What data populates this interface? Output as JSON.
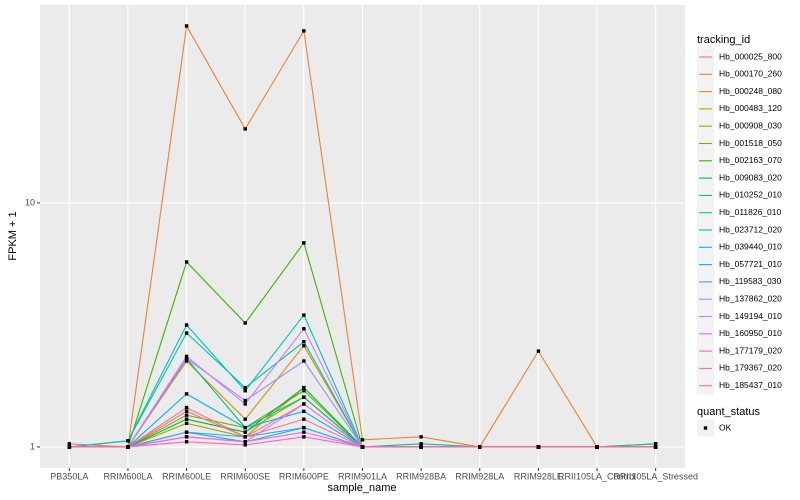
{
  "chart_data": {
    "type": "line",
    "x_label": "sample_name",
    "y_label": "FPKM + 1",
    "categories": [
      "PB350LA",
      "RRIM600LA",
      "RRIM600LE",
      "RRIM600SE",
      "RRIM600PE",
      "RRIM901LA",
      "RRIM928BA",
      "RRIM928LA",
      "RRIM928LE",
      "RRII105LA_Control",
      "RRII105LA_Stressed"
    ],
    "log_scale": "y",
    "ylim": [
      0.82,
      64.7
    ],
    "yticks": [
      1,
      10
    ],
    "grid": true,
    "legend_title": "tracking_id",
    "legend_position": "right",
    "shape_legend_title": "quant_status",
    "shape_legend_labels": [
      "OK"
    ],
    "point_color": "#000000",
    "series": [
      {
        "name": "Hb_000025_800",
        "color": "#F8766D",
        "values": [
          1.03,
          1.0,
          1.45,
          1.1,
          1.5,
          1.0,
          1.0,
          1.0,
          1.0,
          1.0,
          1.0
        ]
      },
      {
        "name": "Hb_000170_260",
        "color": "#EA8331",
        "values": [
          1.0,
          1.0,
          53.1,
          20.1,
          50.7,
          1.07,
          1.1,
          1.0,
          2.47,
          1.0,
          1.0
        ]
      },
      {
        "name": "Hb_000248_080",
        "color": "#D89000",
        "values": [
          1.0,
          1.0,
          2.25,
          1.3,
          2.6,
          1.0,
          1.0,
          1.0,
          1.0,
          1.0,
          1.0
        ]
      },
      {
        "name": "Hb_000483_120",
        "color": "#C09B00",
        "values": [
          1.0,
          1.0,
          1.3,
          1.15,
          1.6,
          1.0,
          1.0,
          1.0,
          1.0,
          1.0,
          1.0
        ]
      },
      {
        "name": "Hb_000908_030",
        "color": "#A3A500",
        "values": [
          1.0,
          1.0,
          1.25,
          1.1,
          1.75,
          1.0,
          1.0,
          1.0,
          1.0,
          1.0,
          1.0
        ]
      },
      {
        "name": "Hb_001518_050",
        "color": "#7CAE00",
        "values": [
          1.0,
          1.0,
          1.35,
          1.2,
          1.7,
          1.0,
          1.0,
          1.0,
          1.0,
          1.0,
          1.0
        ]
      },
      {
        "name": "Hb_002163_070",
        "color": "#39B600",
        "values": [
          1.0,
          1.0,
          5.73,
          3.22,
          6.86,
          1.0,
          1.0,
          1.0,
          1.0,
          1.0,
          1.03
        ]
      },
      {
        "name": "Hb_009083_020",
        "color": "#00BB4E",
        "values": [
          1.0,
          1.0,
          1.3,
          1.15,
          1.75,
          1.0,
          1.0,
          1.0,
          1.0,
          1.0,
          1.0
        ]
      },
      {
        "name": "Hb_010252_010",
        "color": "#00BF7D",
        "values": [
          1.0,
          1.0,
          2.3,
          1.2,
          1.6,
          1.0,
          1.0,
          1.0,
          1.0,
          1.0,
          1.0
        ]
      },
      {
        "name": "Hb_011826_010",
        "color": "#00C1A3",
        "values": [
          1.0,
          1.06,
          2.93,
          1.75,
          2.7,
          1.0,
          1.03,
          1.0,
          1.0,
          1.0,
          1.03
        ]
      },
      {
        "name": "Hb_023712_020",
        "color": "#00BFC4",
        "values": [
          1.0,
          1.06,
          3.16,
          1.7,
          3.47,
          1.0,
          1.0,
          1.0,
          1.0,
          1.0,
          1.0
        ]
      },
      {
        "name": "Hb_039440_010",
        "color": "#00BAE0",
        "values": [
          1.0,
          1.0,
          1.15,
          1.05,
          1.2,
          1.0,
          1.0,
          1.0,
          1.0,
          1.0,
          1.0
        ]
      },
      {
        "name": "Hb_057721_010",
        "color": "#00B0F6",
        "values": [
          1.0,
          1.0,
          1.65,
          1.2,
          1.4,
          1.0,
          1.0,
          1.0,
          1.0,
          1.0,
          1.0
        ]
      },
      {
        "name": "Hb_119583_030",
        "color": "#35A2FF",
        "values": [
          1.0,
          1.0,
          1.15,
          1.1,
          1.2,
          1.0,
          1.0,
          1.0,
          1.0,
          1.0,
          1.0
        ]
      },
      {
        "name": "Hb_137862_020",
        "color": "#9590FF",
        "values": [
          1.0,
          1.0,
          2.3,
          1.55,
          2.25,
          1.0,
          1.0,
          1.0,
          1.0,
          1.0,
          1.0
        ]
      },
      {
        "name": "Hb_149194_010",
        "color": "#C77CFF",
        "values": [
          1.0,
          1.0,
          2.35,
          1.5,
          3.05,
          1.0,
          1.0,
          1.0,
          1.0,
          1.0,
          1.0
        ]
      },
      {
        "name": "Hb_160950_010",
        "color": "#E76BF3",
        "values": [
          1.0,
          1.0,
          1.1,
          1.05,
          1.5,
          1.0,
          1.0,
          1.0,
          1.0,
          1.0,
          1.0
        ]
      },
      {
        "name": "Hb_177179_020",
        "color": "#FA62DB",
        "values": [
          1.0,
          1.0,
          1.1,
          1.05,
          1.15,
          1.0,
          1.0,
          1.0,
          1.0,
          1.0,
          1.0
        ]
      },
      {
        "name": "Hb_179367_020",
        "color": "#FF62BC",
        "values": [
          1.0,
          1.0,
          1.05,
          1.02,
          1.1,
          1.0,
          1.0,
          1.0,
          1.0,
          1.0,
          1.0
        ]
      },
      {
        "name": "Hb_185437_010",
        "color": "#FF6C91",
        "values": [
          1.0,
          1.0,
          1.4,
          1.1,
          1.3,
          1.0,
          1.0,
          1.0,
          1.0,
          1.0,
          1.0
        ]
      }
    ]
  }
}
